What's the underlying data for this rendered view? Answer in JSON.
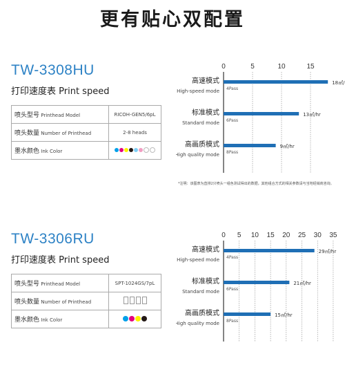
{
  "page_title": "更有贴心双配置",
  "sections": [
    {
      "model": "TW-3308HU",
      "speed_table_title": "打印速度表 Print speed",
      "specs": [
        {
          "label_cn": "喷头型号",
          "label_en": "Printhead Model",
          "value": "RICOH-GEN5/6pL"
        },
        {
          "label_cn": "喷头数量",
          "label_en": "Number of Printhead",
          "value": "2-8 heads"
        },
        {
          "label_cn": "墨水颜色",
          "label_en": "Ink Color",
          "value": ""
        }
      ],
      "ink_colors": [
        "#00a0e9",
        "#e4007f",
        "#fff100",
        "#231815",
        "#7ecef4",
        "#f19ec2",
        "#ffffff",
        "#ffffff"
      ],
      "note": "*注明：该图表为直排2只喷头一组色测试得出的数据，其他组合方式的相关参数请与当地经销商咨询。",
      "chart_data": {
        "type": "bar",
        "orientation": "horizontal",
        "categories": [
          {
            "cn": "高速模式",
            "en": "High-speed mode",
            "pass": "4Pass"
          },
          {
            "cn": "标准模式",
            "en": "Standard mode",
            "pass": "6Pass"
          },
          {
            "cn": "高画质模式",
            "en": "High quality mode",
            "pass": "8Pass"
          }
        ],
        "values": [
          18,
          13,
          9
        ],
        "value_labels": [
          "18㎡/hr",
          "13㎡/hr",
          "9㎡/hr"
        ],
        "xticks": [
          0,
          5,
          10,
          15
        ],
        "xlim": [
          0,
          20
        ],
        "bar_color": "#1f6fb5"
      }
    },
    {
      "model": "TW-3306RU",
      "speed_table_title": "打印速度表 Print speed",
      "specs": [
        {
          "label_cn": "喷头型号",
          "label_en": "Printhead Model",
          "value": "SPT-1024GS/7pL"
        },
        {
          "label_cn": "喷头数量",
          "label_en": "Number of Printhead",
          "value": ""
        },
        {
          "label_cn": "墨水颜色",
          "label_en": "Ink Color",
          "value": ""
        }
      ],
      "ink_colors": [
        "#00a0e9",
        "#e4007f",
        "#fff100",
        "#231815"
      ],
      "note": "",
      "chart_data": {
        "type": "bar",
        "orientation": "horizontal",
        "categories": [
          {
            "cn": "高速模式",
            "en": "High-speed mode",
            "pass": "4Pass"
          },
          {
            "cn": "标准模式",
            "en": "Standard mode",
            "pass": "6Pass"
          },
          {
            "cn": "高画质模式",
            "en": "High quality mode",
            "pass": "8Pass"
          }
        ],
        "values": [
          29,
          21,
          15
        ],
        "value_labels": [
          "29㎡/hr",
          "21㎡/hr",
          "15㎡/hr"
        ],
        "xticks": [
          0,
          5,
          10,
          15,
          20,
          25,
          30,
          35
        ],
        "xlim": [
          0,
          37
        ],
        "bar_color": "#1f6fb5"
      }
    }
  ]
}
